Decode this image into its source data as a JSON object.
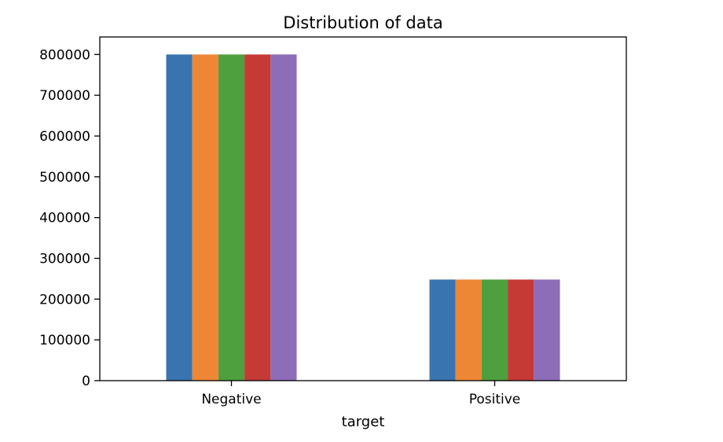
{
  "chart_data": {
    "type": "bar",
    "title": "Distribution of data",
    "xlabel": "target",
    "ylabel": "",
    "categories": [
      "Negative",
      "Positive"
    ],
    "series": [
      {
        "values": [
          800000,
          248000
        ],
        "color": "#3a74b0"
      },
      {
        "values": [
          800000,
          248000
        ],
        "color": "#ee8735"
      },
      {
        "values": [
          800000,
          248000
        ],
        "color": "#4e9f3d"
      },
      {
        "values": [
          800000,
          248000
        ],
        "color": "#c53a35"
      },
      {
        "values": [
          800000,
          248000
        ],
        "color": "#8d6cb8"
      }
    ],
    "ylim": [
      0,
      843000
    ],
    "yticks": [
      0,
      100000,
      200000,
      300000,
      400000,
      500000,
      600000,
      700000,
      800000
    ],
    "ytick_labels": [
      "0",
      "100000",
      "200000",
      "300000",
      "400000",
      "500000",
      "600000",
      "700000",
      "800000"
    ],
    "grid": false,
    "legend": "none"
  }
}
